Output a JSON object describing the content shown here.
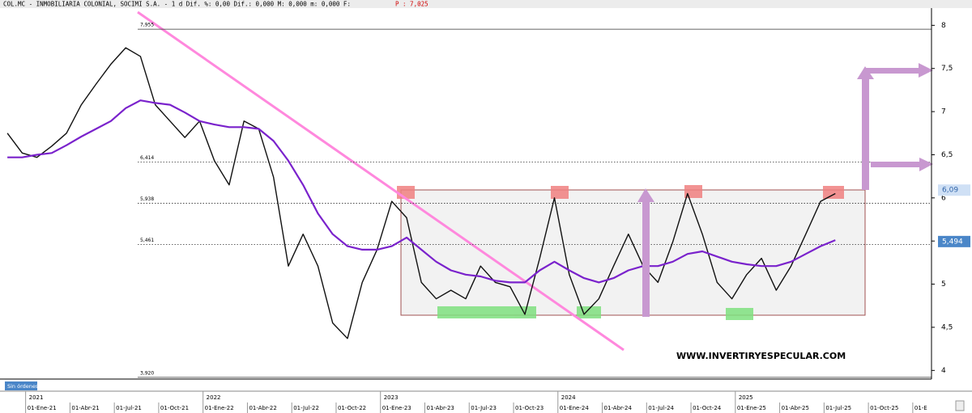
{
  "chart_data": {
    "type": "line",
    "title": "COL.MC - INMOBILIARIA COLONIAL, SOCIMI S.A. - 1 d Dif. %: 0,00 Dif.: 0,000 M: 0,000 m: 0,000 F:",
    "price_label": "P : 7,025",
    "watermark": "WWW.INVERTIRYESPECULAR.COM",
    "button": "Sin órdenes",
    "categories": [
      null,
      null,
      "01-Ene-21",
      null,
      null,
      "01-Abr-21",
      null,
      null,
      "01-Jul-21",
      null,
      null,
      "01-Oct-21",
      null,
      null,
      "01-Ene-22",
      null,
      null,
      "01-Abr-22",
      null,
      null,
      "01-Jul-22",
      null,
      null,
      "01-Oct-22",
      null,
      null,
      "01-Ene-23",
      null,
      null,
      "01-Abr-23",
      null,
      null,
      "01-Jul-23",
      null,
      null,
      "01-Oct-23",
      null,
      null,
      "01-Ene-24",
      null,
      null,
      "01-Abr-24",
      null,
      null,
      "01-Jul-24",
      null,
      null,
      "01-Oct-24",
      null,
      null,
      "01-Ene-25",
      null,
      null,
      "01-Abr-25",
      null,
      null,
      "01-Jul-25",
      null,
      null,
      "01-Oct-25",
      null,
      null,
      "01-E"
    ],
    "years": [
      {
        "index": 2,
        "label": "2021"
      },
      {
        "index": 14,
        "label": "2022"
      },
      {
        "index": 26,
        "label": "2023"
      },
      {
        "index": 38,
        "label": "2024"
      },
      {
        "index": 50,
        "label": "2025"
      }
    ],
    "series": [
      {
        "name": "COL.MC",
        "color": "#111111",
        "values": [
          6.75,
          6.52,
          6.47,
          6.6,
          6.75,
          7.08,
          7.32,
          7.55,
          7.74,
          7.64,
          7.08,
          6.89,
          6.7,
          6.89,
          6.43,
          6.15,
          6.89,
          6.8,
          6.24,
          5.21,
          5.58,
          5.21,
          4.55,
          4.37,
          5.02,
          5.4,
          5.96,
          5.77,
          5.02,
          4.83,
          4.93,
          4.83,
          5.21,
          5.02,
          4.97,
          4.65,
          5.3,
          6.0,
          5.11,
          4.65,
          4.83,
          5.21,
          5.58,
          5.21,
          5.02,
          5.49,
          6.05,
          5.58,
          5.02,
          4.83,
          5.11,
          5.3,
          4.93,
          5.21,
          5.58,
          5.96,
          6.05,
          null,
          null,
          null,
          null,
          null,
          null
        ]
      },
      {
        "name": "MA",
        "color": "#7a22cc",
        "values": [
          6.47,
          6.47,
          6.5,
          6.52,
          6.61,
          6.71,
          6.8,
          6.89,
          7.04,
          7.13,
          7.1,
          7.08,
          6.99,
          6.89,
          6.85,
          6.82,
          6.82,
          6.8,
          6.66,
          6.43,
          6.15,
          5.82,
          5.58,
          5.44,
          5.4,
          5.4,
          5.44,
          5.54,
          5.4,
          5.26,
          5.16,
          5.11,
          5.09,
          5.04,
          5.02,
          5.02,
          5.16,
          5.26,
          5.16,
          5.07,
          5.02,
          5.07,
          5.16,
          5.21,
          5.21,
          5.26,
          5.35,
          5.38,
          5.32,
          5.26,
          5.23,
          5.21,
          5.21,
          5.26,
          5.35,
          5.44,
          5.51,
          null,
          null,
          null,
          null,
          null,
          null
        ]
      }
    ],
    "ylim": [
      3.9,
      8.2
    ],
    "yticks": [
      4,
      {
        "value": 4.5,
        "label": "4,5"
      },
      5,
      {
        "value": 5.5,
        "label": "5,5"
      },
      6,
      {
        "value": 6.5,
        "label": "6,5"
      },
      7,
      {
        "value": 7.5,
        "label": "7,5"
      },
      8
    ],
    "levels": [
      {
        "value": 7.955,
        "label": "7,955",
        "dashed": false
      },
      {
        "value": 6.414,
        "label": "6,414",
        "dashed": true
      },
      {
        "value": 5.938,
        "label": "5,938",
        "dashed": true
      },
      {
        "value": 5.461,
        "label": "5,461",
        "dashed": true
      },
      {
        "value": 3.92,
        "label": "3,920",
        "dashed": false
      }
    ],
    "right_labels": [
      {
        "value": 6.09,
        "label": "6,09",
        "color": "#cfe0f5",
        "text_color": "#3366aa"
      },
      {
        "value": 5.494,
        "label": "5,494",
        "color": "#4a86c8",
        "text_color": "#ffffff"
      }
    ]
  }
}
